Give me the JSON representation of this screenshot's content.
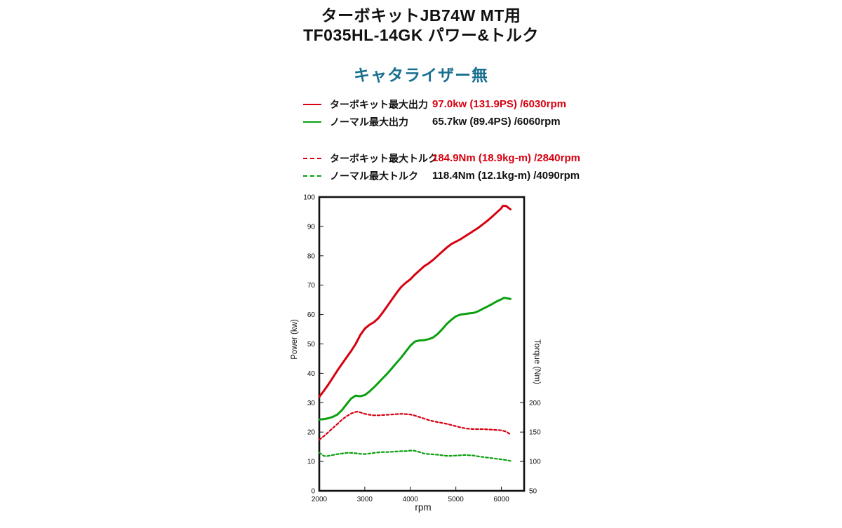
{
  "header": {
    "title_line1": "ターボキットJB74W MT用",
    "title_line2": "TF035HL-14GK パワー&トルク",
    "subtitle": "キャタライザー無"
  },
  "colors": {
    "turbo_red": "#d7000f",
    "normal_green": "#0aa00f",
    "subtitle_teal": "#186f90",
    "text_black": "#111111"
  },
  "legend": {
    "rows": [
      {
        "label": "ターボキット最大出力",
        "value": "97.0kw (131.9PS) /6030rpm"
      },
      {
        "label": "ノーマル最大出力",
        "value": "65.7kw (89.4PS) /6060rpm"
      },
      {
        "label": "ターボキット最大トルク",
        "value": "184.9Nm (18.9kg-m) /2840rpm"
      },
      {
        "label": "ノーマル最大トルク",
        "value": "118.4Nm (12.1kg-m) /4090rpm"
      }
    ]
  },
  "chart_data": {
    "type": "line",
    "title": "TF035HL-14GK power & torque (catalyzer removed)",
    "xlabel": "rpm",
    "ylabel_left": "Power (kw)",
    "ylabel_right": "Torque (Nm)",
    "grid": false,
    "x_range": [
      2000,
      6500
    ],
    "x_ticks": [
      2000,
      3000,
      4000,
      5000,
      6000
    ],
    "y_left_range": [
      0,
      100
    ],
    "y_left_ticks": [
      0,
      10,
      20,
      30,
      40,
      50,
      60,
      70,
      80,
      90,
      100
    ],
    "y_right_range": [
      50,
      550
    ],
    "y_right_ticks": [
      50,
      100,
      150,
      200
    ],
    "series": [
      {
        "name": "ターボキット最大出力 (turbo kit power, kw)",
        "axis": "left",
        "style": "solid",
        "color": "#d7000f",
        "peak": "97.0kw (131.9PS) /6030rpm",
        "points": [
          [
            2000,
            32
          ],
          [
            2100,
            34
          ],
          [
            2200,
            36.2
          ],
          [
            2300,
            38.6
          ],
          [
            2400,
            41
          ],
          [
            2500,
            43.2
          ],
          [
            2600,
            45.4
          ],
          [
            2700,
            47.6
          ],
          [
            2800,
            50
          ],
          [
            2900,
            53
          ],
          [
            3000,
            55.2
          ],
          [
            3100,
            56.5
          ],
          [
            3200,
            57.4
          ],
          [
            3300,
            58.8
          ],
          [
            3400,
            60.8
          ],
          [
            3500,
            63
          ],
          [
            3600,
            65.2
          ],
          [
            3700,
            67.4
          ],
          [
            3800,
            69.4
          ],
          [
            3900,
            70.8
          ],
          [
            4000,
            72
          ],
          [
            4100,
            73.6
          ],
          [
            4200,
            75
          ],
          [
            4300,
            76.4
          ],
          [
            4400,
            77.4
          ],
          [
            4500,
            78.6
          ],
          [
            4600,
            80
          ],
          [
            4700,
            81.4
          ],
          [
            4800,
            82.8
          ],
          [
            4900,
            84
          ],
          [
            5000,
            84.8
          ],
          [
            5100,
            85.6
          ],
          [
            5200,
            86.6
          ],
          [
            5300,
            87.6
          ],
          [
            5400,
            88.6
          ],
          [
            5500,
            89.6
          ],
          [
            5600,
            90.8
          ],
          [
            5700,
            92
          ],
          [
            5800,
            93.4
          ],
          [
            5900,
            94.8
          ],
          [
            6000,
            96.2
          ],
          [
            6030,
            97
          ],
          [
            6100,
            97
          ],
          [
            6200,
            95.8
          ]
        ]
      },
      {
        "name": "ノーマル最大出力 (normal power, kw)",
        "axis": "left",
        "style": "solid",
        "color": "#0aa00f",
        "peak": "65.7kw (89.4PS) /6060rpm",
        "points": [
          [
            2000,
            24.3
          ],
          [
            2100,
            24.4
          ],
          [
            2200,
            24.7
          ],
          [
            2300,
            25.2
          ],
          [
            2400,
            26
          ],
          [
            2500,
            27.5
          ],
          [
            2600,
            29.5
          ],
          [
            2700,
            31.4
          ],
          [
            2800,
            32.4
          ],
          [
            2900,
            32.2
          ],
          [
            3000,
            32.6
          ],
          [
            3100,
            33.8
          ],
          [
            3200,
            35.2
          ],
          [
            3300,
            36.8
          ],
          [
            3400,
            38.4
          ],
          [
            3500,
            40
          ],
          [
            3600,
            41.8
          ],
          [
            3700,
            43.6
          ],
          [
            3800,
            45.4
          ],
          [
            3900,
            47.4
          ],
          [
            4000,
            49.4
          ],
          [
            4100,
            50.8
          ],
          [
            4200,
            51.2
          ],
          [
            4300,
            51.3
          ],
          [
            4400,
            51.6
          ],
          [
            4500,
            52.2
          ],
          [
            4600,
            53.4
          ],
          [
            4700,
            55
          ],
          [
            4800,
            56.8
          ],
          [
            4900,
            58.2
          ],
          [
            5000,
            59.4
          ],
          [
            5100,
            60
          ],
          [
            5200,
            60.2
          ],
          [
            5300,
            60.4
          ],
          [
            5400,
            60.6
          ],
          [
            5500,
            61.2
          ],
          [
            5600,
            62
          ],
          [
            5700,
            62.8
          ],
          [
            5800,
            63.6
          ],
          [
            5900,
            64.5
          ],
          [
            6000,
            65.2
          ],
          [
            6060,
            65.7
          ],
          [
            6200,
            65.3
          ]
        ]
      },
      {
        "name": "ターボキット最大トルク (turbo kit torque, Nm)",
        "axis": "right",
        "style": "dashed",
        "color": "#d7000f",
        "peak": "184.9Nm (18.9kg-m) /2840rpm",
        "points": [
          [
            2000,
            137
          ],
          [
            2100,
            143
          ],
          [
            2200,
            150
          ],
          [
            2300,
            157
          ],
          [
            2400,
            164
          ],
          [
            2500,
            171
          ],
          [
            2600,
            177
          ],
          [
            2700,
            181.5
          ],
          [
            2800,
            184.3
          ],
          [
            2840,
            184.9
          ],
          [
            2900,
            183.5
          ],
          [
            3000,
            181
          ],
          [
            3100,
            179.5
          ],
          [
            3200,
            178.5
          ],
          [
            3300,
            178.5
          ],
          [
            3400,
            179
          ],
          [
            3500,
            179.5
          ],
          [
            3600,
            180
          ],
          [
            3700,
            180.5
          ],
          [
            3800,
            181
          ],
          [
            3900,
            180.5
          ],
          [
            4000,
            180
          ],
          [
            4100,
            178
          ],
          [
            4200,
            175.5
          ],
          [
            4300,
            173
          ],
          [
            4400,
            170.5
          ],
          [
            4500,
            168.5
          ],
          [
            4600,
            167
          ],
          [
            4700,
            165.5
          ],
          [
            4800,
            164
          ],
          [
            4900,
            162
          ],
          [
            5000,
            160
          ],
          [
            5100,
            158
          ],
          [
            5200,
            156.5
          ],
          [
            5300,
            155.5
          ],
          [
            5400,
            155
          ],
          [
            5500,
            155
          ],
          [
            5600,
            155
          ],
          [
            5700,
            154.5
          ],
          [
            5800,
            154
          ],
          [
            5900,
            153.5
          ],
          [
            6000,
            153
          ],
          [
            6100,
            151
          ],
          [
            6200,
            146
          ]
        ]
      },
      {
        "name": "ノーマル最大トルク (normal torque, Nm)",
        "axis": "right",
        "style": "dashed",
        "color": "#0aa00f",
        "peak": "118.4Nm (12.1kg-m) /4090rpm",
        "points": [
          [
            2000,
            115
          ],
          [
            2100,
            109.5
          ],
          [
            2150,
            109
          ],
          [
            2200,
            109.5
          ],
          [
            2300,
            111
          ],
          [
            2400,
            112.5
          ],
          [
            2500,
            113.5
          ],
          [
            2600,
            114.5
          ],
          [
            2700,
            114.5
          ],
          [
            2800,
            114
          ],
          [
            2900,
            113
          ],
          [
            3000,
            112.5
          ],
          [
            3100,
            113.5
          ],
          [
            3200,
            114.5
          ],
          [
            3300,
            115.5
          ],
          [
            3400,
            116
          ],
          [
            3500,
            116
          ],
          [
            3600,
            116.5
          ],
          [
            3700,
            117
          ],
          [
            3800,
            117.5
          ],
          [
            3900,
            117.5
          ],
          [
            4000,
            118.5
          ],
          [
            4090,
            118.4
          ],
          [
            4200,
            116
          ],
          [
            4300,
            113.5
          ],
          [
            4400,
            112.5
          ],
          [
            4500,
            112
          ],
          [
            4600,
            111.5
          ],
          [
            4700,
            110.5
          ],
          [
            4800,
            109.5
          ],
          [
            4900,
            109.5
          ],
          [
            5000,
            110
          ],
          [
            5100,
            110.5
          ],
          [
            5200,
            111
          ],
          [
            5300,
            110.5
          ],
          [
            5400,
            110
          ],
          [
            5500,
            108.5
          ],
          [
            5600,
            107.5
          ],
          [
            5700,
            106.5
          ],
          [
            5800,
            105.5
          ],
          [
            5900,
            104.5
          ],
          [
            6000,
            103.5
          ],
          [
            6100,
            102.5
          ],
          [
            6200,
            101
          ]
        ]
      }
    ]
  }
}
